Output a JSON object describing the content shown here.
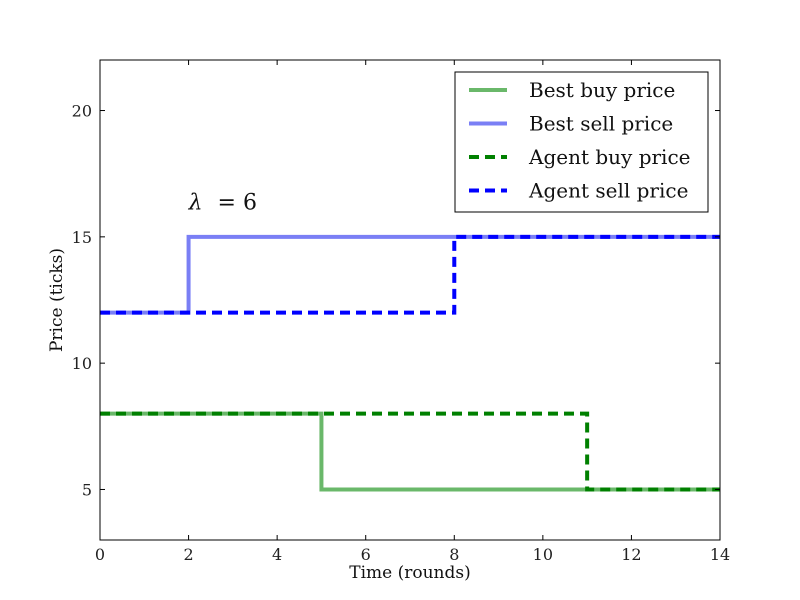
{
  "chart_data": {
    "type": "line",
    "step": "post",
    "title": "",
    "xlabel": "Time (rounds)",
    "ylabel": "Price (ticks)",
    "xlim": [
      0,
      14
    ],
    "ylim": [
      3,
      22
    ],
    "xticks": [
      0,
      2,
      4,
      6,
      8,
      10,
      12,
      14
    ],
    "yticks": [
      5,
      10,
      15,
      20
    ],
    "grid": false,
    "legend_position": "top-right",
    "annotation": {
      "symbol": "λ",
      "text": "= 6",
      "x": 2,
      "y": 16.4
    },
    "series": [
      {
        "name": "Best buy price",
        "color": "#6ab86a",
        "style": "solid",
        "x": [
          0,
          5,
          14
        ],
        "y": [
          8,
          5,
          5
        ]
      },
      {
        "name": "Best sell price",
        "color": "#7a7ff5",
        "style": "solid",
        "x": [
          0,
          2,
          14
        ],
        "y": [
          12,
          15,
          15
        ]
      },
      {
        "name": "Agent buy price",
        "color": "#008000",
        "style": "dashed",
        "x": [
          0,
          11,
          14
        ],
        "y": [
          8,
          5,
          5
        ]
      },
      {
        "name": "Agent sell price",
        "color": "#0000ff",
        "style": "dashed",
        "x": [
          0,
          8,
          14
        ],
        "y": [
          12,
          15,
          15
        ]
      }
    ]
  }
}
